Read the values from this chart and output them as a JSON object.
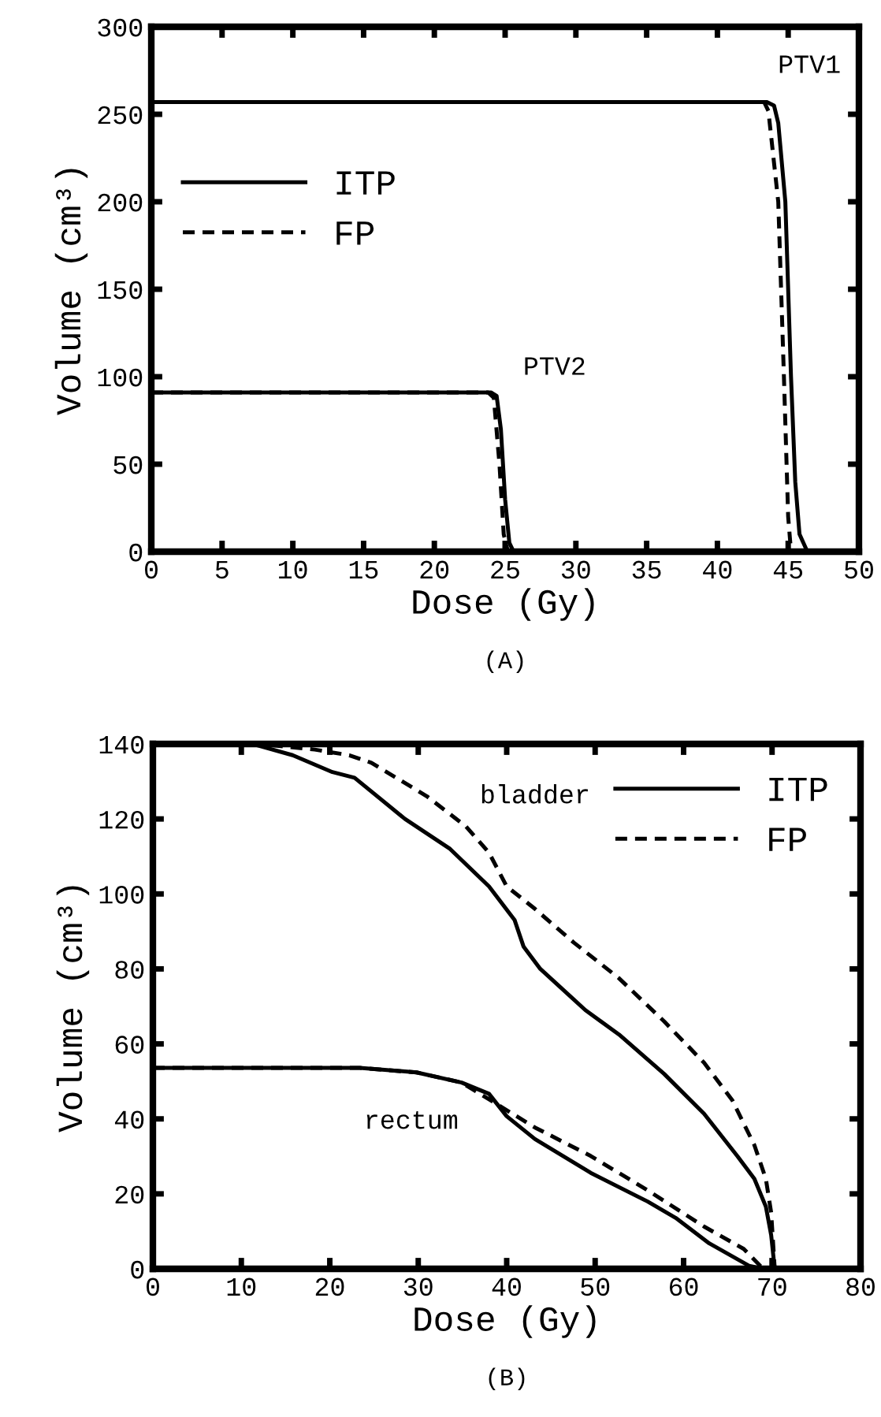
{
  "chart_data": [
    {
      "type": "line",
      "xlabel": "Dose (Gy)",
      "ylabel": "Volume (cm³)",
      "xlim": [
        0,
        50
      ],
      "ylim": [
        0,
        300
      ],
      "xticks": [
        0,
        5,
        10,
        15,
        20,
        25,
        30,
        35,
        40,
        45,
        50
      ],
      "yticks": [
        0,
        50,
        100,
        150,
        200,
        250,
        300
      ],
      "legend": "center left",
      "grid": false,
      "series": [
        {
          "name": "ITP",
          "color": "#000000",
          "line_style": "solid",
          "x": [
            0,
            43.5,
            44,
            44.3,
            44.8,
            45.2,
            45.5,
            45.8,
            46.3,
            46.6
          ],
          "values": [
            257,
            257,
            255,
            245,
            200,
            100,
            40,
            10,
            1,
            0
          ]
        },
        {
          "name": "FP",
          "color": "#000000",
          "line_style": "dashed",
          "x": [
            0,
            43.3,
            43.6,
            44.3,
            44.7,
            45,
            45.2
          ],
          "values": [
            257,
            257,
            252,
            200,
            100,
            20,
            0
          ]
        },
        {
          "color": "#000000",
          "line_style": "solid",
          "x": [
            0,
            24,
            24.4,
            24.7,
            25,
            25.3,
            25.6
          ],
          "values": [
            91,
            91,
            89,
            70,
            30,
            5,
            0
          ]
        },
        {
          "color": "#000000",
          "line_style": "dashed",
          "x": [
            0,
            23.8,
            24.2,
            24.6,
            24.9,
            25.2
          ],
          "values": [
            91,
            91,
            88,
            50,
            10,
            0
          ]
        }
      ],
      "annotations": [
        "PTV1",
        "PTV2",
        "(A)"
      ]
    },
    {
      "type": "line",
      "xlabel": "Dose (Gy)",
      "ylabel": "Volume (cm³)",
      "xlim": [
        0,
        80
      ],
      "ylim": [
        0,
        140
      ],
      "xticks": [
        0,
        10,
        20,
        30,
        40,
        50,
        60,
        70,
        80
      ],
      "yticks": [
        0,
        20,
        40,
        60,
        80,
        100,
        120,
        140
      ],
      "legend": "top right",
      "grid": false,
      "series": [
        {
          "name": "ITP",
          "color": "#000000",
          "line_style": "solid",
          "x": [
            0,
            11.7,
            15.8,
            20.3,
            22.8,
            28.5,
            33.6,
            38,
            40.9,
            41.9,
            43.8,
            48.9,
            52.7,
            57.8,
            62.3,
            66.1,
            68,
            69.3,
            69.9,
            70.3
          ],
          "values": [
            140,
            139.7,
            137,
            132.5,
            131,
            120,
            112,
            102,
            93,
            86,
            80,
            69,
            62.5,
            52,
            41.4,
            30,
            24,
            16.6,
            9,
            0
          ]
        },
        {
          "name": "FP",
          "color": "#000000",
          "line_style": "dashed",
          "x": [
            0,
            12,
            18.3,
            22.2,
            24.7,
            31,
            35.4,
            38,
            40,
            43.2,
            47.6,
            52.7,
            57.8,
            62.3,
            65.5,
            68,
            69.3,
            69.9,
            70.3
          ],
          "values": [
            140,
            140,
            138.5,
            137,
            135,
            126,
            118,
            111,
            102,
            96,
            87,
            77.5,
            66,
            55,
            45,
            33,
            24,
            15,
            0
          ]
        },
        {
          "color": "#000000",
          "line_style": "solid",
          "x": [
            0,
            23.4,
            29.8,
            34.9,
            38,
            40,
            43.2,
            49.5,
            55.9,
            59.1,
            62.9,
            67.4,
            69
          ],
          "values": [
            53.6,
            53.6,
            52.4,
            49.7,
            46.7,
            40.7,
            34.6,
            25.6,
            18,
            13.6,
            6.8,
            0.8,
            0
          ]
        },
        {
          "color": "#000000",
          "line_style": "dashed",
          "x": [
            0,
            23.4,
            29.8,
            34.9,
            38,
            43.2,
            49.5,
            55.9,
            62.3,
            66.8,
            69
          ],
          "values": [
            53.6,
            53.6,
            52.4,
            49.7,
            45.2,
            37.7,
            30.1,
            21,
            11.3,
            5.3,
            0
          ]
        }
      ],
      "annotations": [
        "bladder",
        "rectum",
        "(B)"
      ]
    }
  ]
}
